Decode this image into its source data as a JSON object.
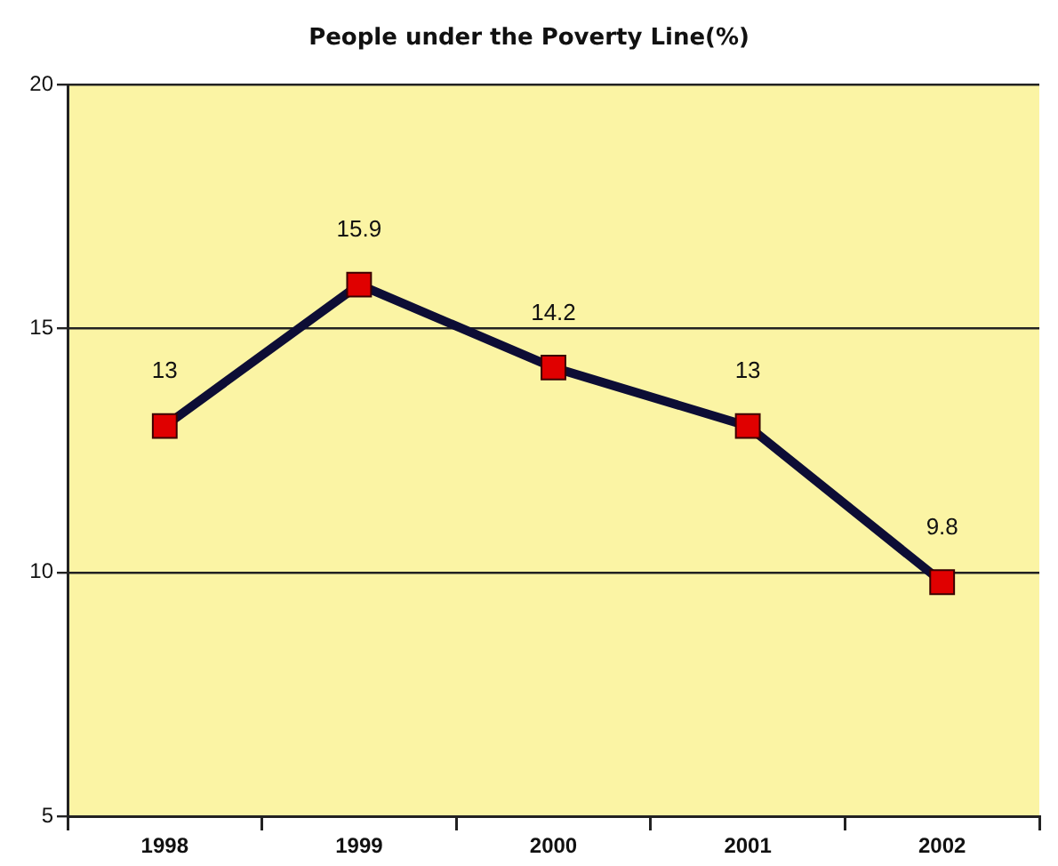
{
  "chart_data": {
    "type": "line",
    "title": "People under the Poverty Line(%)",
    "categories": [
      "1998",
      "1999",
      "2000",
      "2001",
      "2002"
    ],
    "series": [
      {
        "color": "#0d0d35",
        "colors": [
          "#e00000",
          "#e00000",
          "#e00000",
          "#e00000",
          "#e00000"
        ],
        "values": [
          13,
          15.9,
          14.2,
          13,
          9.8
        ]
      }
    ],
    "ylim": [
      5,
      20
    ],
    "yticks": [
      5,
      10,
      15,
      20
    ],
    "grid": "y",
    "legend": false,
    "marker": "square",
    "line_style": "solid",
    "data_labels": true
  }
}
